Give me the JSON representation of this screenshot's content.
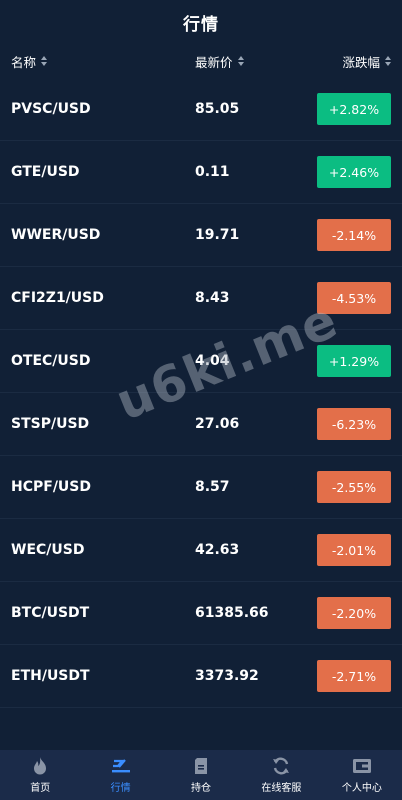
{
  "header": {
    "title": "行情"
  },
  "columns": {
    "name": "名称",
    "price": "最新价",
    "change": "涨跌幅"
  },
  "rows": [
    {
      "symbol": "PVSC/USD",
      "price": "85.05",
      "change": "+2.82%",
      "dir": "up"
    },
    {
      "symbol": "GTE/USD",
      "price": "0.11",
      "change": "+2.46%",
      "dir": "up"
    },
    {
      "symbol": "WWER/USD",
      "price": "19.71",
      "change": "-2.14%",
      "dir": "down"
    },
    {
      "symbol": "CFI2Z1/USD",
      "price": "8.43",
      "change": "-4.53%",
      "dir": "down"
    },
    {
      "symbol": "OTEC/USD",
      "price": "4.04",
      "change": "+1.29%",
      "dir": "up"
    },
    {
      "symbol": "STSP/USD",
      "price": "27.06",
      "change": "-6.23%",
      "dir": "down"
    },
    {
      "symbol": "HCPF/USD",
      "price": "8.57",
      "change": "-2.55%",
      "dir": "down"
    },
    {
      "symbol": "WEC/USD",
      "price": "42.63",
      "change": "-2.01%",
      "dir": "down"
    },
    {
      "symbol": "BTC/USDT",
      "price": "61385.66",
      "change": "-2.20%",
      "dir": "down"
    },
    {
      "symbol": "ETH/USDT",
      "price": "3373.92",
      "change": "-2.71%",
      "dir": "down"
    }
  ],
  "watermark": "u6ki.me",
  "tabs": [
    {
      "label": "首页",
      "icon": "flame-icon"
    },
    {
      "label": "行情",
      "icon": "market-icon",
      "active": true
    },
    {
      "label": "持仓",
      "icon": "position-icon"
    },
    {
      "label": "在线客服",
      "icon": "refresh-icon"
    },
    {
      "label": "个人中心",
      "icon": "wallet-icon"
    }
  ],
  "colors": {
    "up": "#0bbd82",
    "down": "#e36f4a",
    "active_tab": "#3a8dfe",
    "background": "#112036"
  }
}
